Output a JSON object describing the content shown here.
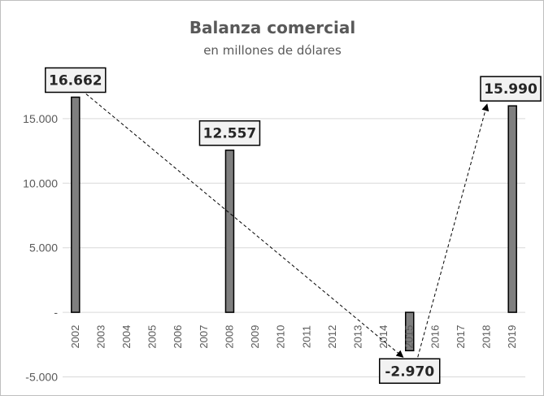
{
  "chart_data": {
    "type": "bar",
    "title": "Balanza comercial",
    "subtitle": "en millones de dólares",
    "categories": [
      "2002",
      "2003",
      "2004",
      "2005",
      "2006",
      "2007",
      "2008",
      "2009",
      "2010",
      "2011",
      "2012",
      "2013",
      "2014",
      "2015",
      "2016",
      "2017",
      "2018",
      "2019"
    ],
    "values": [
      16662,
      null,
      null,
      null,
      null,
      null,
      12557,
      null,
      null,
      null,
      null,
      null,
      null,
      -2970,
      null,
      null,
      null,
      15990
    ],
    "data_labels": [
      {
        "category": "2002",
        "text": "16.662"
      },
      {
        "category": "2008",
        "text": "12.557"
      },
      {
        "category": "2015",
        "text": "-2.970"
      },
      {
        "category": "2019",
        "text": "15.990"
      }
    ],
    "y_ticks": [
      {
        "value": -5000,
        "label": "-5.000"
      },
      {
        "value": 0,
        "label": "-"
      },
      {
        "value": 5000,
        "label": "5.000"
      },
      {
        "value": 10000,
        "label": "10.000"
      },
      {
        "value": 15000,
        "label": "15.000"
      }
    ],
    "ylim": [
      -5000,
      20000
    ],
    "grid": true,
    "annotations": [
      {
        "type": "dashed-arrow",
        "from": "2002",
        "to": "2015"
      },
      {
        "type": "dashed-arrow",
        "from": "2015",
        "to": "2019"
      }
    ],
    "colors": {
      "bar": "#7f7f7f",
      "bar_edge": "#000000",
      "grid": "#d9d9d9",
      "text": "#595959"
    }
  }
}
